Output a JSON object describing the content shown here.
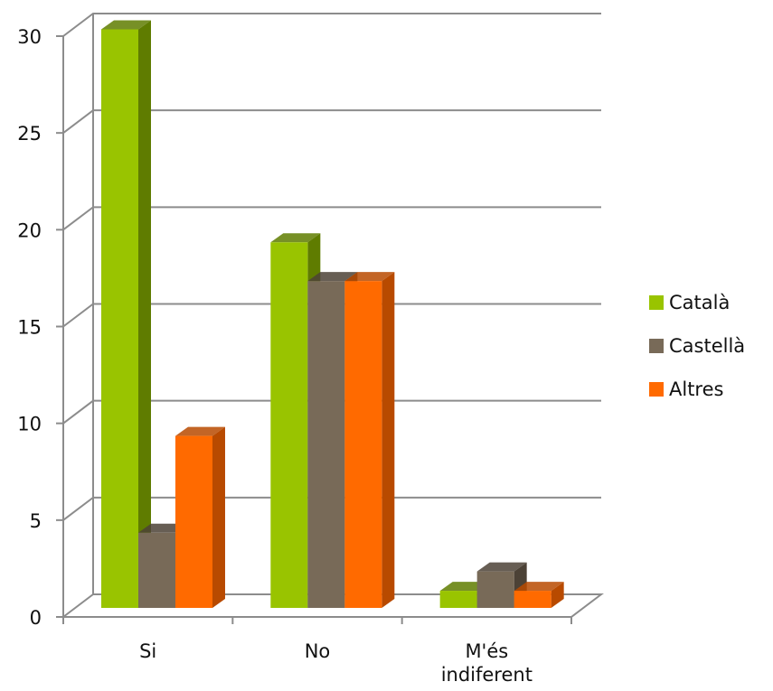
{
  "chart_data": {
    "type": "bar",
    "style": "3d-clustered-column",
    "categories": [
      [
        "Si"
      ],
      [
        "No"
      ],
      [
        "M'és",
        "indiferent"
      ]
    ],
    "series": [
      {
        "name": "Català",
        "color": "#99c400",
        "side_color": "#5f7c00",
        "values": [
          30,
          19,
          1
        ]
      },
      {
        "name": "Castellà",
        "color": "#786a58",
        "side_color": "#4c4236",
        "values": [
          4,
          17,
          2
        ]
      },
      {
        "name": "Altres",
        "color": "#ff6a00",
        "side_color": "#b84a00",
        "values": [
          9,
          17,
          1
        ]
      }
    ],
    "ylim": [
      0,
      30
    ],
    "yticks": [
      "0",
      "5",
      "10",
      "15",
      "20",
      "25",
      "30"
    ],
    "grid": true,
    "legend": "right",
    "title": "",
    "xlabel": "",
    "ylabel": ""
  }
}
